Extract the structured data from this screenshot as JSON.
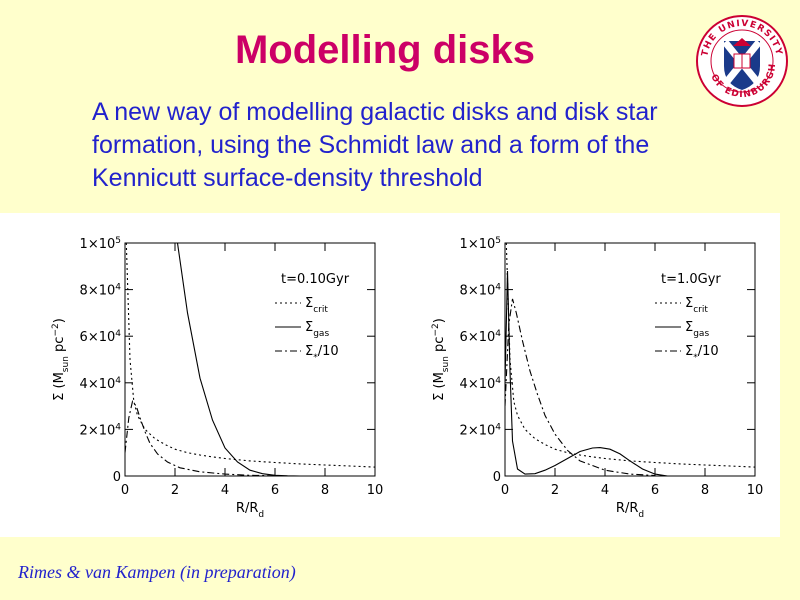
{
  "slide": {
    "title": "Modelling disks",
    "subtitle": "A new way of modelling galactic disks and disk star formation, using the Schmidt law and a form of the Kennicutt surface-density threshold",
    "citation": "Rimes & van Kampen (in preparation)",
    "logo": {
      "name": "university-of-edinburgh-crest",
      "text": "THE UNIVERSITY OF EDINBURGH",
      "colors": [
        "#cc0033",
        "#1a3a8a"
      ]
    }
  },
  "chart_data": [
    {
      "type": "line",
      "xlabel": "R/R",
      "xlabel_sub": "d",
      "ylabel": "Σ (M",
      "ylabel_sub": "sun",
      "ylabel_unit": " pc",
      "ylabel_sup": "−2",
      "ylabel_close": ")",
      "xlim": [
        0,
        10
      ],
      "ylim": [
        0,
        100000
      ],
      "xticks": [
        "0",
        "2",
        "4",
        "6",
        "8",
        "10"
      ],
      "yticks": [
        {
          "v": 0,
          "m": "0",
          "e": ""
        },
        {
          "v": 20000,
          "m": "2×10",
          "e": "4"
        },
        {
          "v": 40000,
          "m": "4×10",
          "e": "4"
        },
        {
          "v": 60000,
          "m": "6×10",
          "e": "4"
        },
        {
          "v": 80000,
          "m": "8×10",
          "e": "4"
        },
        {
          "v": 100000,
          "m": "1×10",
          "e": "5"
        }
      ],
      "annotation": "t=0.10Gyr",
      "legend_position": "top-right",
      "series": [
        {
          "name": "Σ",
          "name_sub": "crit",
          "style": "dotted",
          "x": [
            0.05,
            0.2,
            0.35,
            0.5,
            0.8,
            1.2,
            1.6,
            2,
            2.5,
            3,
            3.5,
            4,
            5,
            6,
            7,
            8,
            9,
            10
          ],
          "y": [
            100000,
            50000,
            32000,
            26000,
            20000,
            16000,
            13500,
            11500,
            10000,
            9000,
            8200,
            7500,
            6500,
            5800,
            5200,
            4700,
            4300,
            3800
          ]
        },
        {
          "name": "Σ",
          "name_sub": "gas",
          "style": "solid",
          "x": [
            2.1,
            2.5,
            3,
            3.5,
            4,
            4.5,
            5,
            5.5,
            6,
            6.5,
            7
          ],
          "y": [
            100000,
            70000,
            42000,
            24000,
            12000,
            6000,
            2500,
            1000,
            300,
            80,
            0
          ]
        },
        {
          "name": "Σ",
          "name_sub": "*",
          "name_suffix": "/10",
          "style": "dashdot",
          "x": [
            0,
            0.15,
            0.3,
            0.45,
            0.6,
            0.8,
            1,
            1.3,
            1.7,
            2.2,
            3,
            4,
            5,
            6
          ],
          "y": [
            10000,
            25000,
            32000,
            30000,
            25000,
            19000,
            14000,
            9500,
            6000,
            3500,
            1800,
            800,
            300,
            100
          ]
        }
      ]
    },
    {
      "type": "line",
      "xlabel": "R/R",
      "xlabel_sub": "d",
      "ylabel": "Σ (M",
      "ylabel_sub": "sun",
      "ylabel_unit": " pc",
      "ylabel_sup": "−2",
      "ylabel_close": ")",
      "xlim": [
        0,
        10
      ],
      "ylim": [
        0,
        100000
      ],
      "xticks": [
        "0",
        "2",
        "4",
        "6",
        "8",
        "10"
      ],
      "yticks": [
        {
          "v": 0,
          "m": "0",
          "e": ""
        },
        {
          "v": 20000,
          "m": "2×10",
          "e": "4"
        },
        {
          "v": 40000,
          "m": "4×10",
          "e": "4"
        },
        {
          "v": 60000,
          "m": "6×10",
          "e": "4"
        },
        {
          "v": 80000,
          "m": "8×10",
          "e": "4"
        },
        {
          "v": 100000,
          "m": "1×10",
          "e": "5"
        }
      ],
      "annotation": "t=1.0Gyr",
      "legend_position": "top-right",
      "series": [
        {
          "name": "Σ",
          "name_sub": "crit",
          "style": "dotted",
          "x": [
            0.05,
            0.2,
            0.35,
            0.5,
            0.8,
            1.2,
            1.6,
            2,
            2.5,
            3,
            3.5,
            4,
            5,
            6,
            7,
            8,
            9,
            10
          ],
          "y": [
            100000,
            50000,
            32000,
            26000,
            20000,
            16000,
            13500,
            11500,
            10000,
            9000,
            8200,
            7500,
            6500,
            5800,
            5200,
            4700,
            4300,
            3800
          ]
        },
        {
          "name": "Σ",
          "name_sub": "gas",
          "style": "solid",
          "x": [
            0,
            0.1,
            0.2,
            0.3,
            0.5,
            0.8,
            1.2,
            1.6,
            2,
            2.5,
            3,
            3.5,
            3.8,
            4.2,
            4.6,
            5,
            5.5,
            6,
            6.5
          ],
          "y": [
            40000,
            88000,
            45000,
            15000,
            3000,
            800,
            1000,
            2500,
            4500,
            7500,
            10500,
            12000,
            12200,
            11500,
            9500,
            6500,
            3000,
            800,
            0
          ]
        },
        {
          "name": "Σ",
          "name_sub": "*",
          "name_suffix": "/10",
          "style": "dashdot",
          "x": [
            0,
            0.15,
            0.3,
            0.45,
            0.7,
            1,
            1.3,
            1.6,
            2,
            2.5,
            3,
            4,
            5,
            6
          ],
          "y": [
            30000,
            65000,
            76000,
            70000,
            58000,
            45000,
            35000,
            26000,
            18000,
            11000,
            6500,
            2500,
            800,
            200
          ]
        }
      ]
    }
  ]
}
